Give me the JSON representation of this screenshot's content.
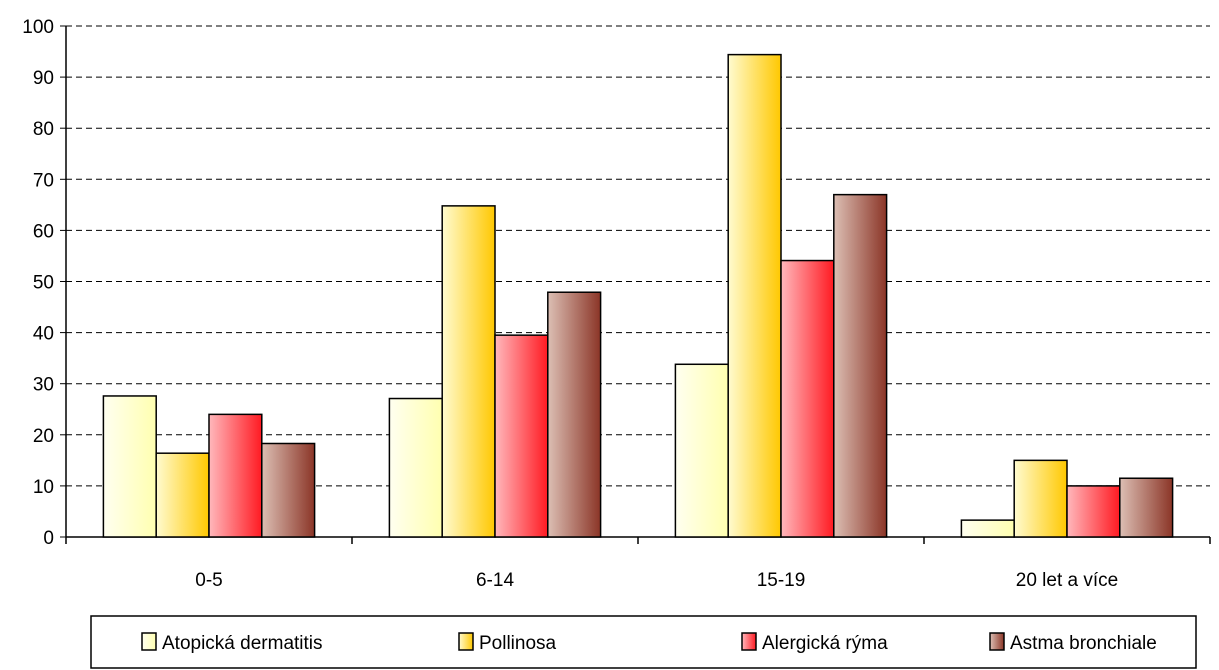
{
  "chart_data": {
    "type": "bar",
    "title": "",
    "xlabel": "",
    "ylabel": "",
    "categories": [
      "0-5",
      "6-14",
      "15-19",
      "20 let a více"
    ],
    "series": [
      {
        "name": "Atopická dermatitis",
        "values": [
          27.6,
          27.1,
          33.8,
          3.3
        ]
      },
      {
        "name": "Pollinosa",
        "values": [
          16.4,
          64.8,
          94.4,
          15.0
        ]
      },
      {
        "name": "Alergická rýma",
        "values": [
          24.0,
          39.5,
          54.1,
          10.0
        ]
      },
      {
        "name": "Astma bronchiale",
        "values": [
          18.3,
          47.9,
          67.0,
          11.5
        ]
      }
    ],
    "ylim": [
      0,
      100
    ],
    "yticks": [
      0,
      10,
      20,
      30,
      40,
      50,
      60,
      70,
      80,
      90,
      100
    ],
    "grid": "horizontal dashed",
    "legend_position": "bottom",
    "colors": {
      "Atopická dermatitis": [
        "#fffff0",
        "#ffffb0"
      ],
      "Pollinosa": [
        "#fffbd0",
        "#ffc800"
      ],
      "Alergická rýma": [
        "#ffb8bc",
        "#ff1a22"
      ],
      "Astma bronchiale": [
        "#dcbfb4",
        "#8b3527"
      ]
    }
  }
}
